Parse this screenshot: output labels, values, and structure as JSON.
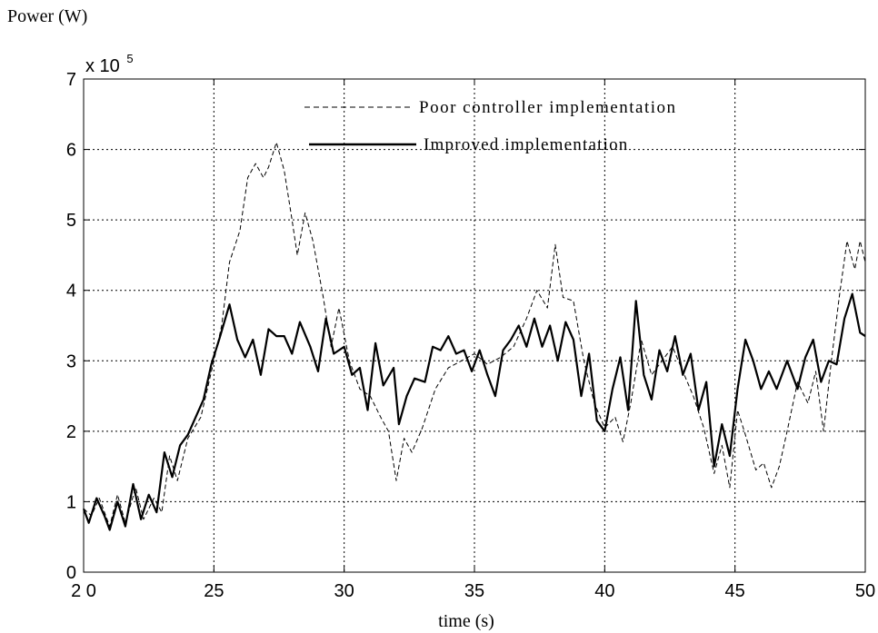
{
  "chart_data": {
    "type": "line",
    "title": "",
    "ylabel": "Power (W)",
    "xlabel": "time (s)",
    "y_multiplier_base": "x 10",
    "y_multiplier_exp": "5",
    "xlim": [
      20,
      50
    ],
    "ylim": [
      0,
      7
    ],
    "xticks": [
      20,
      25,
      30,
      35,
      40,
      45,
      50
    ],
    "xtick_labels": [
      "2 0",
      "25",
      "30",
      "35",
      "40",
      "45",
      "50"
    ],
    "yticks": [
      0,
      1,
      2,
      3,
      4,
      5,
      6,
      7
    ],
    "ytick_labels": [
      "0",
      "1",
      "2",
      "3",
      "4",
      "5",
      "6",
      "7"
    ],
    "grid": true,
    "legend_position": "top-center",
    "series": [
      {
        "name": "Poor controller implementation",
        "style": "dashed",
        "color": "#000000",
        "points": [
          [
            20,
            0.9
          ],
          [
            20.3,
            0.8
          ],
          [
            20.6,
            1.05
          ],
          [
            21.0,
            0.65
          ],
          [
            21.3,
            1.1
          ],
          [
            21.6,
            0.7
          ],
          [
            22.0,
            1.2
          ],
          [
            22.3,
            0.75
          ],
          [
            22.7,
            1.05
          ],
          [
            23.0,
            0.85
          ],
          [
            23.3,
            1.65
          ],
          [
            23.6,
            1.3
          ],
          [
            24.0,
            1.9
          ],
          [
            24.5,
            2.2
          ],
          [
            25.0,
            3.0
          ],
          [
            25.3,
            3.5
          ],
          [
            25.6,
            4.4
          ],
          [
            26.0,
            4.85
          ],
          [
            26.3,
            5.6
          ],
          [
            26.6,
            5.8
          ],
          [
            26.9,
            5.6
          ],
          [
            27.1,
            5.75
          ],
          [
            27.4,
            6.1
          ],
          [
            27.7,
            5.7
          ],
          [
            28.0,
            5.0
          ],
          [
            28.2,
            4.5
          ],
          [
            28.5,
            5.1
          ],
          [
            28.8,
            4.7
          ],
          [
            29.2,
            3.9
          ],
          [
            29.5,
            3.2
          ],
          [
            29.8,
            3.75
          ],
          [
            30.2,
            3.0
          ],
          [
            30.6,
            2.6
          ],
          [
            31.0,
            2.5
          ],
          [
            31.4,
            2.2
          ],
          [
            31.7,
            2.0
          ],
          [
            32.0,
            1.3
          ],
          [
            32.3,
            1.9
          ],
          [
            32.6,
            1.7
          ],
          [
            33.0,
            2.05
          ],
          [
            33.5,
            2.6
          ],
          [
            34.0,
            2.9
          ],
          [
            34.5,
            3.0
          ],
          [
            35.0,
            3.1
          ],
          [
            35.5,
            2.95
          ],
          [
            36.0,
            3.05
          ],
          [
            36.5,
            3.2
          ],
          [
            37.0,
            3.6
          ],
          [
            37.4,
            4.0
          ],
          [
            37.8,
            3.75
          ],
          [
            38.1,
            4.65
          ],
          [
            38.4,
            3.9
          ],
          [
            38.8,
            3.85
          ],
          [
            39.2,
            3.0
          ],
          [
            39.6,
            2.4
          ],
          [
            40.0,
            2.05
          ],
          [
            40.4,
            2.2
          ],
          [
            40.7,
            1.85
          ],
          [
            41.0,
            2.4
          ],
          [
            41.4,
            3.3
          ],
          [
            41.8,
            2.8
          ],
          [
            42.2,
            3.0
          ],
          [
            42.6,
            3.2
          ],
          [
            43.0,
            2.85
          ],
          [
            43.4,
            2.5
          ],
          [
            43.8,
            2.05
          ],
          [
            44.2,
            1.4
          ],
          [
            44.5,
            1.8
          ],
          [
            44.8,
            1.2
          ],
          [
            45.1,
            2.3
          ],
          [
            45.4,
            1.95
          ],
          [
            45.8,
            1.45
          ],
          [
            46.1,
            1.55
          ],
          [
            46.4,
            1.2
          ],
          [
            46.7,
            1.5
          ],
          [
            47.0,
            2.0
          ],
          [
            47.4,
            2.7
          ],
          [
            47.8,
            2.4
          ],
          [
            48.1,
            2.85
          ],
          [
            48.4,
            2.0
          ],
          [
            48.7,
            3.0
          ],
          [
            49.0,
            3.9
          ],
          [
            49.3,
            4.7
          ],
          [
            49.6,
            4.3
          ],
          [
            49.8,
            4.7
          ],
          [
            50.0,
            4.4
          ]
        ]
      },
      {
        "name": "Improved implementation",
        "style": "solid",
        "color": "#000000",
        "points": [
          [
            20,
            0.9
          ],
          [
            20.2,
            0.7
          ],
          [
            20.5,
            1.05
          ],
          [
            20.8,
            0.8
          ],
          [
            21.0,
            0.6
          ],
          [
            21.3,
            1.0
          ],
          [
            21.6,
            0.65
          ],
          [
            21.9,
            1.25
          ],
          [
            22.2,
            0.75
          ],
          [
            22.5,
            1.1
          ],
          [
            22.8,
            0.85
          ],
          [
            23.1,
            1.7
          ],
          [
            23.4,
            1.35
          ],
          [
            23.7,
            1.8
          ],
          [
            24.0,
            1.95
          ],
          [
            24.3,
            2.2
          ],
          [
            24.6,
            2.45
          ],
          [
            24.9,
            2.95
          ],
          [
            25.2,
            3.3
          ],
          [
            25.6,
            3.8
          ],
          [
            25.9,
            3.3
          ],
          [
            26.2,
            3.05
          ],
          [
            26.5,
            3.3
          ],
          [
            26.8,
            2.8
          ],
          [
            27.1,
            3.45
          ],
          [
            27.4,
            3.35
          ],
          [
            27.7,
            3.35
          ],
          [
            28.0,
            3.1
          ],
          [
            28.3,
            3.55
          ],
          [
            28.7,
            3.2
          ],
          [
            29.0,
            2.85
          ],
          [
            29.3,
            3.6
          ],
          [
            29.6,
            3.1
          ],
          [
            30.0,
            3.2
          ],
          [
            30.3,
            2.8
          ],
          [
            30.6,
            2.9
          ],
          [
            30.9,
            2.3
          ],
          [
            31.2,
            3.25
          ],
          [
            31.5,
            2.65
          ],
          [
            31.9,
            2.9
          ],
          [
            32.1,
            2.1
          ],
          [
            32.4,
            2.5
          ],
          [
            32.7,
            2.75
          ],
          [
            33.1,
            2.7
          ],
          [
            33.4,
            3.2
          ],
          [
            33.7,
            3.15
          ],
          [
            34.0,
            3.35
          ],
          [
            34.3,
            3.1
          ],
          [
            34.6,
            3.15
          ],
          [
            34.9,
            2.85
          ],
          [
            35.2,
            3.15
          ],
          [
            35.5,
            2.8
          ],
          [
            35.8,
            2.5
          ],
          [
            36.1,
            3.15
          ],
          [
            36.4,
            3.3
          ],
          [
            36.7,
            3.5
          ],
          [
            37.0,
            3.2
          ],
          [
            37.3,
            3.6
          ],
          [
            37.6,
            3.2
          ],
          [
            37.9,
            3.5
          ],
          [
            38.2,
            3.0
          ],
          [
            38.5,
            3.55
          ],
          [
            38.8,
            3.3
          ],
          [
            39.1,
            2.5
          ],
          [
            39.4,
            3.1
          ],
          [
            39.7,
            2.15
          ],
          [
            40.0,
            2.0
          ],
          [
            40.3,
            2.6
          ],
          [
            40.6,
            3.05
          ],
          [
            40.9,
            2.3
          ],
          [
            41.2,
            3.85
          ],
          [
            41.5,
            2.8
          ],
          [
            41.8,
            2.45
          ],
          [
            42.1,
            3.15
          ],
          [
            42.4,
            2.85
          ],
          [
            42.7,
            3.35
          ],
          [
            43.0,
            2.8
          ],
          [
            43.3,
            3.1
          ],
          [
            43.6,
            2.3
          ],
          [
            43.9,
            2.7
          ],
          [
            44.2,
            1.5
          ],
          [
            44.5,
            2.1
          ],
          [
            44.8,
            1.65
          ],
          [
            45.1,
            2.6
          ],
          [
            45.4,
            3.3
          ],
          [
            45.7,
            3.0
          ],
          [
            46.0,
            2.6
          ],
          [
            46.3,
            2.85
          ],
          [
            46.6,
            2.6
          ],
          [
            47.0,
            3.0
          ],
          [
            47.4,
            2.6
          ],
          [
            47.7,
            3.05
          ],
          [
            48.0,
            3.3
          ],
          [
            48.3,
            2.7
          ],
          [
            48.6,
            3.0
          ],
          [
            48.9,
            2.95
          ],
          [
            49.2,
            3.6
          ],
          [
            49.5,
            3.95
          ],
          [
            49.8,
            3.4
          ],
          [
            50.0,
            3.35
          ]
        ]
      }
    ]
  }
}
